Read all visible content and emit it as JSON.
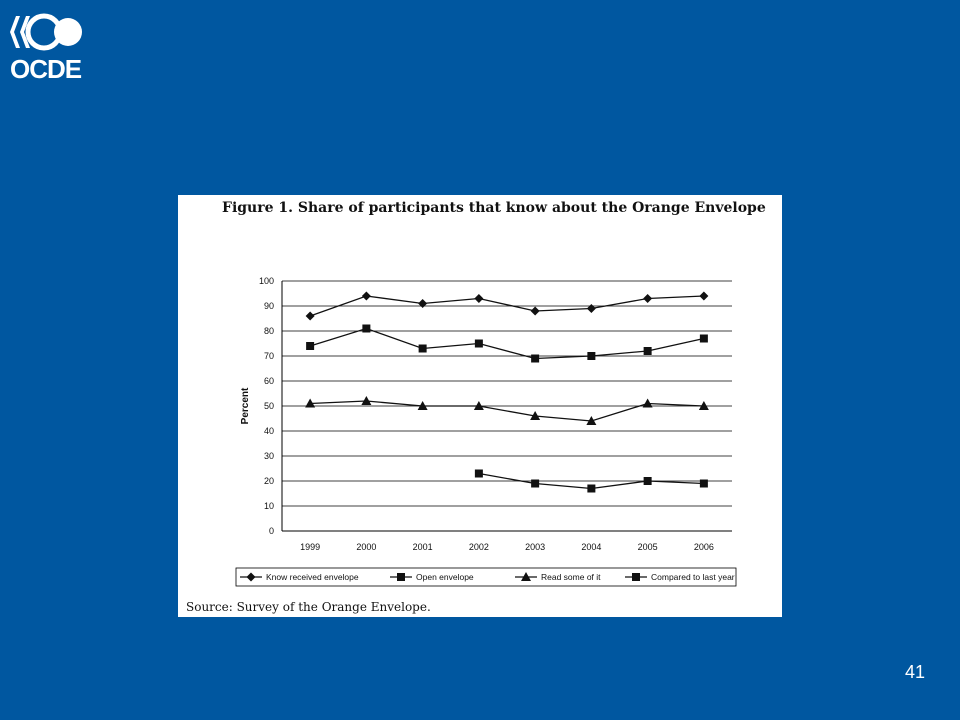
{
  "logo": {
    "text": "OCDE"
  },
  "figure": {
    "title": "Figure 1. Share of participants that know about the Orange Envelope",
    "source": "Source: Survey of the Orange Envelope."
  },
  "page_number": "41",
  "chart_data": {
    "type": "line",
    "title": "Figure 1. Share of participants that know about the Orange Envelope",
    "xlabel": "",
    "ylabel": "Percent",
    "categories": [
      "1999",
      "2000",
      "2001",
      "2002",
      "2003",
      "2004",
      "2005",
      "2006"
    ],
    "ylim": [
      0,
      100
    ],
    "yticks": [
      0,
      10,
      20,
      30,
      40,
      50,
      60,
      70,
      80,
      90,
      100
    ],
    "grid": true,
    "legend_position": "bottom",
    "series": [
      {
        "name": "Know received envelope",
        "marker": "diamond",
        "values": [
          86,
          94,
          91,
          93,
          88,
          89,
          93,
          94
        ]
      },
      {
        "name": "Open envelope",
        "marker": "square",
        "values": [
          74,
          81,
          73,
          75,
          69,
          70,
          72,
          77
        ]
      },
      {
        "name": "Read some of it",
        "marker": "triangle",
        "values": [
          51,
          52,
          50,
          50,
          46,
          44,
          51,
          50
        ]
      },
      {
        "name": "Compared to last year",
        "marker": "square",
        "values": [
          null,
          null,
          null,
          23,
          19,
          17,
          20,
          19
        ]
      }
    ],
    "colors": {
      "line": "#111111",
      "grid": "#000000"
    }
  }
}
